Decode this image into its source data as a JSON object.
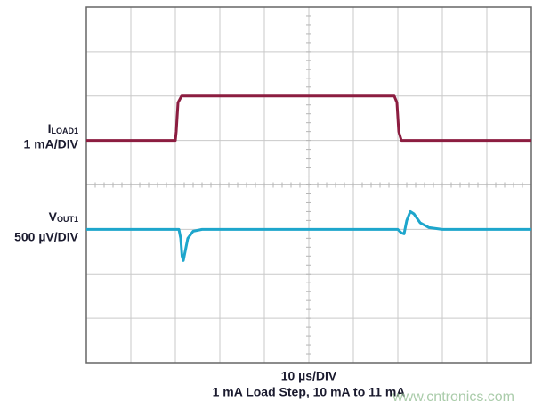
{
  "chart_data": {
    "type": "line",
    "xlabel": "10 µs/DIV",
    "subtitle": "1 mA Load Step, 10 mA to 11 mA",
    "watermark": "www.cntronics.com",
    "xlim": [
      0,
      10
    ],
    "ylim": [
      0,
      8
    ],
    "xticks": [
      0,
      1,
      2,
      3,
      4,
      5,
      6,
      7,
      8,
      9,
      10
    ],
    "yticks": [
      0,
      1,
      2,
      3,
      4,
      5,
      6,
      7,
      8
    ],
    "grid": true,
    "series": [
      {
        "name": "I",
        "name_sub": "LOAD1",
        "scale": "1 mA/DIV",
        "color": "#8c1d40",
        "x": [
          0,
          2.0,
          2.02,
          2.06,
          2.14,
          6.92,
          6.98,
          7.02,
          7.08,
          10
        ],
        "values": [
          5,
          5,
          5.2,
          5.85,
          6,
          6,
          5.85,
          5.2,
          5,
          5
        ]
      },
      {
        "name": "V",
        "name_sub": "OUT1",
        "scale": "500 µV/DIV",
        "color": "#1ea6cc",
        "x": [
          0,
          2.08,
          2.12,
          2.15,
          2.18,
          2.22,
          2.28,
          2.4,
          2.6,
          7.0,
          7.08,
          7.14,
          7.2,
          7.28,
          7.36,
          7.5,
          7.7,
          8.0,
          10
        ],
        "values": [
          3,
          3,
          2.8,
          2.4,
          2.3,
          2.5,
          2.8,
          2.96,
          3,
          3,
          2.92,
          2.9,
          3.2,
          3.4,
          3.35,
          3.15,
          3.04,
          3,
          3
        ]
      }
    ]
  }
}
